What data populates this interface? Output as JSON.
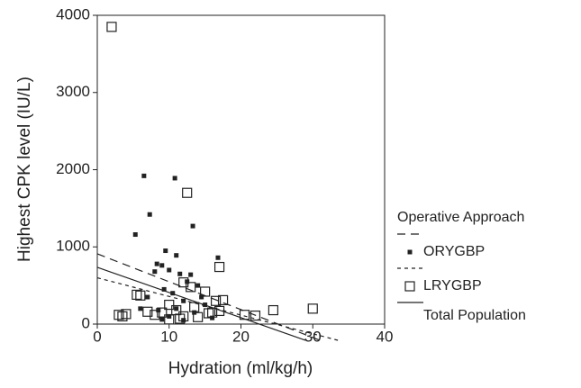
{
  "chart_data": {
    "type": "scatter",
    "x_label": "Hydration (ml/kg/h)",
    "y_label": "Highest CPK level (IU/L)",
    "xlim": [
      0,
      40
    ],
    "xticks": [
      0,
      10,
      20,
      30,
      40
    ],
    "ylim": [
      0,
      4000
    ],
    "yticks": [
      0,
      1000,
      2000,
      3000,
      4000
    ],
    "legend_title": "Operative Approach",
    "legend": "right",
    "series": [
      {
        "name": "ORYGBP",
        "type": "scatter",
        "marker": "filled",
        "color": "#222222",
        "x": [
          6.5,
          10.8,
          7.3,
          13.3,
          5.3,
          9.5,
          11,
          16.8,
          8.3,
          9,
          10,
          11.5,
          13,
          8,
          12.5,
          14,
          9.3,
          10.5,
          7,
          12,
          15,
          11,
          8.5,
          13.5,
          10,
          9,
          12,
          16,
          6,
          14.5
        ],
        "values": [
          1920,
          1890,
          1420,
          1270,
          1160,
          950,
          890,
          860,
          780,
          760,
          700,
          650,
          640,
          680,
          550,
          500,
          450,
          400,
          350,
          300,
          250,
          200,
          180,
          150,
          100,
          60,
          50,
          80,
          200,
          350
        ],
        "fit": {
          "dash": "9 6",
          "x": [
            0,
            31
          ],
          "values": [
            910,
            -210
          ]
        }
      },
      {
        "name": "LRYGBP",
        "type": "scatter",
        "marker": "open",
        "color": "#222222",
        "x": [
          2,
          12.5,
          17,
          5.5,
          6,
          3,
          4,
          3.5,
          16.5,
          17.5,
          15,
          13,
          20.5,
          22,
          24.5,
          30,
          10,
          11,
          9,
          8,
          12,
          14,
          16,
          17,
          10,
          11.5,
          13.5,
          15.5,
          7,
          12
        ],
        "values": [
          3850,
          1700,
          740,
          380,
          370,
          120,
          130,
          100,
          300,
          310,
          420,
          480,
          120,
          110,
          180,
          200,
          250,
          180,
          150,
          120,
          100,
          90,
          150,
          170,
          60,
          70,
          220,
          140,
          160,
          540
        ],
        "fit": {
          "dash": "4 4",
          "x": [
            0,
            33.5
          ],
          "values": [
            600,
            -210
          ]
        }
      },
      {
        "name": "Total Population",
        "type": "line",
        "color": "#222222",
        "x": [
          0,
          29
        ],
        "values": [
          735,
          -210
        ]
      }
    ]
  }
}
